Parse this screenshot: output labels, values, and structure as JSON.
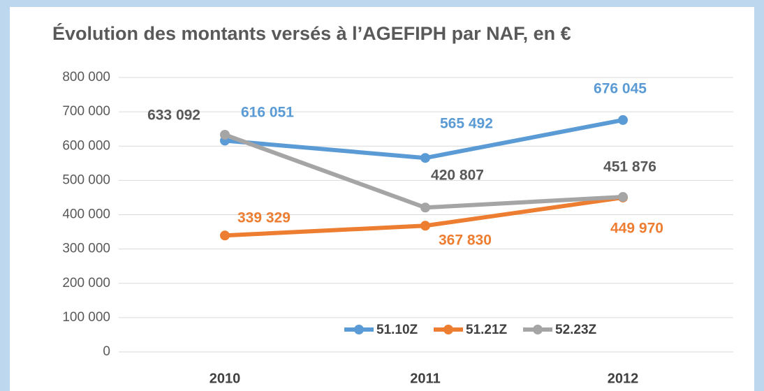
{
  "chart_data": {
    "type": "line",
    "title": "Évolution des montants versés à l’AGEFIPH par NAF, en €",
    "categories": [
      "2010",
      "2011",
      "2012"
    ],
    "series": [
      {
        "name": "51.10Z",
        "color": "#5b9bd5",
        "values": [
          616051,
          565492,
          676045
        ],
        "value_labels": [
          "616 051",
          "565 492",
          "676 045"
        ]
      },
      {
        "name": "51.21Z",
        "color": "#ed7d31",
        "values": [
          339329,
          367830,
          449970
        ],
        "value_labels": [
          "339 329",
          "367 830",
          "449 970"
        ]
      },
      {
        "name": "52.23Z",
        "color": "#a5a5a5",
        "values": [
          633092,
          420807,
          451876
        ],
        "value_labels": [
          "633 092",
          "420 807",
          "451 876"
        ]
      }
    ],
    "ylim": [
      0,
      800000
    ],
    "yticks": [
      0,
      {
        "value": 100000,
        "label": "100 000"
      },
      {
        "value": 200000,
        "label": "200 000"
      },
      {
        "value": 300000,
        "label": "300 000"
      },
      {
        "value": 400000,
        "label": "400 000"
      },
      {
        "value": 500000,
        "label": "500 000"
      },
      {
        "value": 600000,
        "label": "600 000"
      },
      {
        "value": 700000,
        "label": "700 000"
      },
      {
        "value": 800000,
        "label": "800 000"
      }
    ],
    "grid": true,
    "legend": "bottom"
  }
}
